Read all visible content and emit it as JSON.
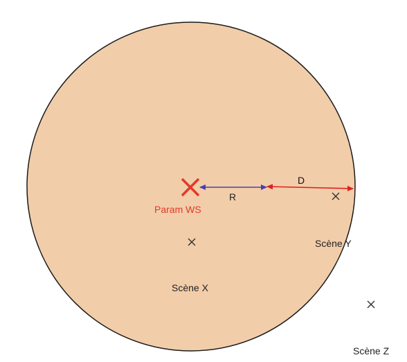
{
  "labels": {
    "param_ws": "Param WS",
    "r": "R",
    "d": "D",
    "scene_x": "Scène X",
    "scene_y": "Scène Y",
    "scene_z": "Scène Z"
  },
  "colors": {
    "zone_fill": "#f2cda9",
    "zone_stroke": "#1a1a1a",
    "param_marker": "#e03a2a",
    "radius_arrow": "#4a3fb0",
    "distance_arrow": "#e02020",
    "scene_marker": "#333333",
    "text": "#222222"
  },
  "icons": {
    "param_ws_marker": "cross-icon",
    "scene_marker": "cross-icon"
  }
}
